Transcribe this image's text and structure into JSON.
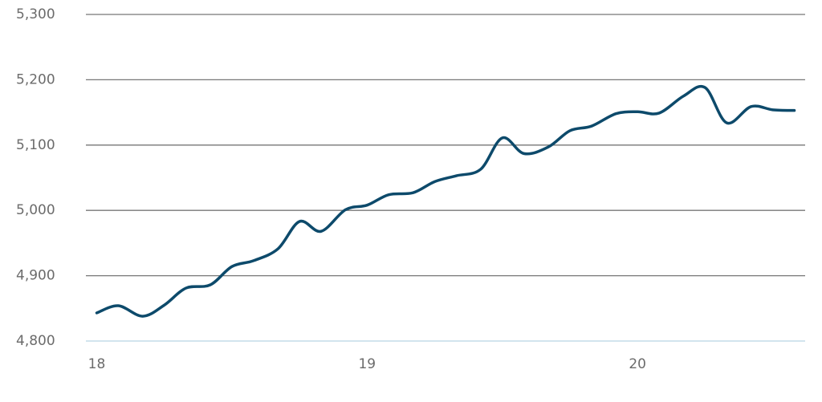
{
  "chart_data": {
    "type": "line",
    "x": [
      18,
      18.08,
      18.17,
      18.25,
      18.33,
      18.42,
      18.5,
      18.58,
      18.67,
      18.75,
      18.83,
      18.92,
      19,
      19.08,
      19.17,
      19.25,
      19.33,
      19.42,
      19.5,
      19.58,
      19.67,
      19.75,
      19.83,
      19.92,
      20,
      20.08,
      20.17,
      20.25,
      20.33,
      20.42,
      20.5,
      20.58
    ],
    "series": [
      {
        "color": "#0d4a6b",
        "values": [
          4843,
          4854,
          4838,
          4855,
          4881,
          4886,
          4914,
          4923,
          4941,
          4983,
          4968,
          5001,
          5008,
          5024,
          5027,
          5044,
          5053,
          5063,
          5111,
          5087,
          5097,
          5122,
          5129,
          5148,
          5151,
          5149,
          5175,
          5188,
          5134,
          5159,
          5154,
          5153
        ]
      }
    ],
    "xlim": [
      17.96,
      20.62
    ],
    "xticks": [
      18,
      19,
      20
    ],
    "ylim": [
      4800,
      5300
    ],
    "yticks": [
      {
        "value": 4800,
        "label": "4,800"
      },
      {
        "value": 4900,
        "label": "4,900"
      },
      {
        "value": 5000,
        "label": "5,000"
      },
      {
        "value": 5100,
        "label": "5,100"
      },
      {
        "value": 5200,
        "label": "5,200"
      },
      {
        "value": 5300,
        "label": "5,300"
      }
    ],
    "grid": true
  }
}
